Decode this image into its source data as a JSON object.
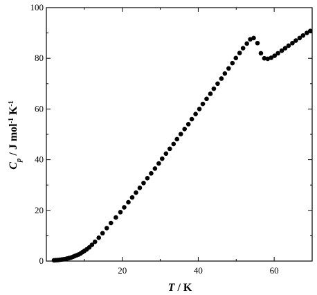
{
  "chart_data": {
    "type": "scatter",
    "xlabel": {
      "var": "T",
      "sep": " / ",
      "unit": "K"
    },
    "ylabel": {
      "var": "C",
      "sub": "p",
      "sep": " / J mol",
      "sup1": "-1",
      "mid": " K",
      "sup2": "-1"
    },
    "xlim": [
      0,
      70
    ],
    "ylim": [
      0,
      100
    ],
    "x_ticks": [
      0,
      20,
      40,
      60
    ],
    "x_tick_labels": [
      "20",
      "40",
      "60"
    ],
    "y_ticks": [
      0,
      20,
      40,
      60,
      80,
      100
    ],
    "y_tick_labels": [
      "0",
      "20",
      "40",
      "60",
      "80",
      "100"
    ],
    "grid": false,
    "marker_color": "#000000",
    "series": [
      {
        "x": [
          2.0,
          2.5,
          3.0,
          3.5,
          4.0,
          4.5,
          5.0,
          5.5,
          6.0,
          6.5,
          7.0,
          7.5,
          8.0,
          8.5,
          9.0,
          9.5,
          10.0,
          10.6,
          11.3,
          12.0,
          12.8,
          13.8,
          14.8,
          15.9,
          17.0,
          18.3,
          19.5,
          20.5,
          21.6,
          22.6,
          23.6,
          24.6,
          25.6,
          26.6,
          27.6,
          28.6,
          29.6,
          30.5,
          31.5,
          32.5,
          33.5,
          34.4,
          35.4,
          36.4,
          37.4,
          38.3,
          39.3,
          40.3,
          41.2,
          42.2,
          43.2,
          44.1,
          45.1,
          46.1,
          47.0,
          48.0,
          49.0,
          49.9,
          50.9,
          51.8,
          52.8,
          53.7,
          54.6,
          55.6,
          56.5,
          57.4,
          58.3,
          59.2,
          60.1,
          61.0,
          62.0,
          62.9,
          63.8,
          64.8,
          65.7,
          66.7,
          67.6,
          68.6,
          69.5
        ],
        "y": [
          0.3,
          0.35,
          0.4,
          0.5,
          0.6,
          0.7,
          0.8,
          1.0,
          1.2,
          1.4,
          1.7,
          2.0,
          2.3,
          2.6,
          3.0,
          3.5,
          4.0,
          4.6,
          5.4,
          6.4,
          7.6,
          9.2,
          11.0,
          13.0,
          15.0,
          17.2,
          19.3,
          21.2,
          23.2,
          25.1,
          27.0,
          28.9,
          30.8,
          32.7,
          34.6,
          36.5,
          38.5,
          40.4,
          42.4,
          44.3,
          46.2,
          48.1,
          50.1,
          52.1,
          54.0,
          56.0,
          58.0,
          60.0,
          62.0,
          64.0,
          66.0,
          68.0,
          70.0,
          72.0,
          74.0,
          76.0,
          78.1,
          80.1,
          82.1,
          84.0,
          85.8,
          87.5,
          88.0,
          86.0,
          82.0,
          80.0,
          79.8,
          80.2,
          81.0,
          82.0,
          83.0,
          84.0,
          85.0,
          86.0,
          87.0,
          88.0,
          89.0,
          90.0,
          90.8
        ]
      }
    ]
  }
}
